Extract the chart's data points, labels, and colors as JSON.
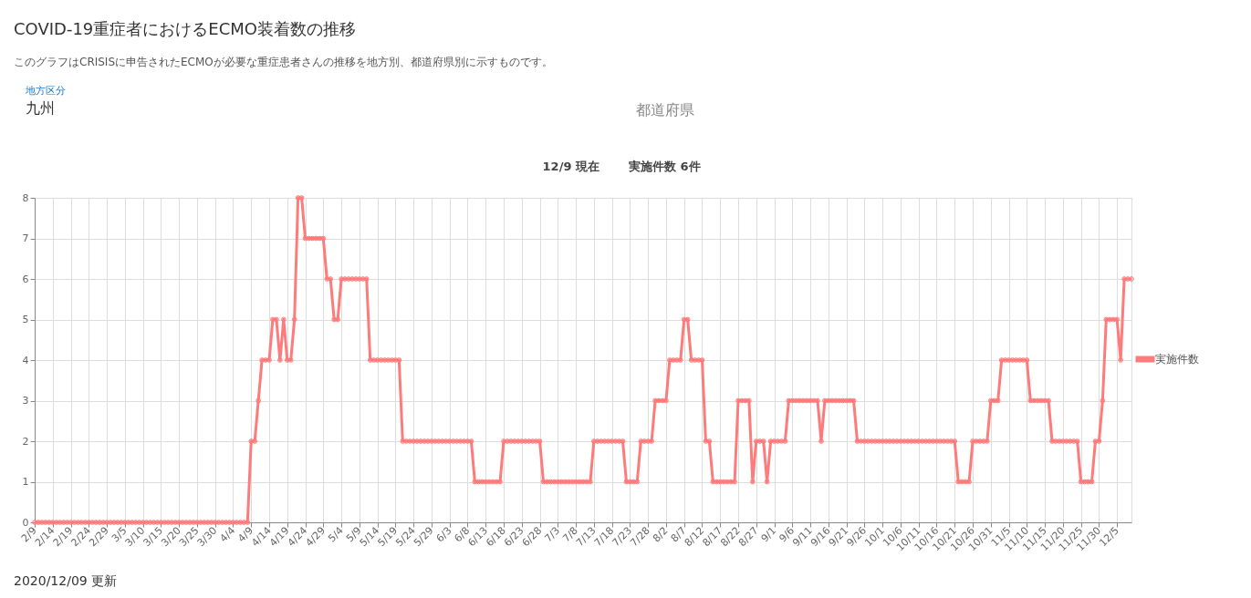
{
  "chart_data": {
    "type": "line",
    "title": "COVID-19重症者におけるECMO装着数の推移",
    "subtitle": "このグラフはCRISISに申告されたECMOが必要な重症患者さんの推移を地方別、都道府県別に示すものです。",
    "annotations": [
      "地方区分",
      "九州",
      "都道府県",
      "12/9 現在",
      "実施件数 6件",
      "2020/12/09 更新"
    ],
    "categories": [
      "2/9",
      null,
      null,
      null,
      null,
      "2/14",
      null,
      null,
      null,
      null,
      "2/19",
      null,
      null,
      null,
      null,
      "2/24",
      null,
      null,
      null,
      null,
      "2/29",
      null,
      null,
      null,
      null,
      "3/5",
      null,
      null,
      null,
      null,
      "3/10",
      null,
      null,
      null,
      null,
      "3/15",
      null,
      null,
      null,
      null,
      "3/20",
      null,
      null,
      null,
      null,
      "3/25",
      null,
      null,
      null,
      null,
      "3/30",
      null,
      null,
      null,
      null,
      "4/4",
      null,
      null,
      null,
      null,
      "4/9",
      null,
      null,
      null,
      null,
      "4/14",
      null,
      null,
      null,
      null,
      "4/19",
      null,
      null,
      null,
      null,
      "4/24",
      null,
      null,
      null,
      null,
      "4/29",
      null,
      null,
      null,
      null,
      "5/4",
      null,
      null,
      null,
      null,
      "5/9",
      null,
      null,
      null,
      null,
      "5/14",
      null,
      null,
      null,
      null,
      "5/19",
      null,
      null,
      null,
      null,
      "5/24",
      null,
      null,
      null,
      null,
      "5/29",
      null,
      null,
      null,
      null,
      "6/3",
      null,
      null,
      null,
      null,
      "6/8",
      null,
      null,
      null,
      null,
      "6/13",
      null,
      null,
      null,
      null,
      "6/18",
      null,
      null,
      null,
      null,
      "6/23",
      null,
      null,
      null,
      null,
      "6/28",
      null,
      null,
      null,
      null,
      "7/3",
      null,
      null,
      null,
      null,
      "7/8",
      null,
      null,
      null,
      null,
      "7/13",
      null,
      null,
      null,
      null,
      "7/18",
      null,
      null,
      null,
      null,
      "7/23",
      null,
      null,
      null,
      null,
      "7/28",
      null,
      null,
      null,
      null,
      "8/2",
      null,
      null,
      null,
      null,
      "8/7",
      null,
      null,
      null,
      null,
      "8/12",
      null,
      null,
      null,
      null,
      "8/17",
      null,
      null,
      null,
      null,
      "8/22",
      null,
      null,
      null,
      null,
      "8/27",
      null,
      null,
      null,
      null,
      "9/1",
      null,
      null,
      null,
      null,
      "9/6",
      null,
      null,
      null,
      null,
      "9/11",
      null,
      null,
      null,
      null,
      "9/16",
      null,
      null,
      null,
      null,
      "9/21",
      null,
      null,
      null,
      null,
      "9/26",
      null,
      null,
      null,
      null,
      "10/1",
      null,
      null,
      null,
      null,
      "10/6",
      null,
      null,
      null,
      null,
      "10/11",
      null,
      null,
      null,
      null,
      "10/16",
      null,
      null,
      null,
      null,
      "10/21",
      null,
      null,
      null,
      null,
      "10/26",
      null,
      null,
      null,
      null,
      "10/31",
      null,
      null,
      null,
      null,
      "11/5",
      null,
      null,
      null,
      null,
      "11/10",
      null,
      null,
      null,
      null,
      "11/15",
      null,
      null,
      null,
      null,
      "11/20",
      null,
      null,
      null,
      null,
      "11/25",
      null,
      null,
      null,
      null,
      "11/30",
      null,
      null,
      null,
      null,
      "12/5",
      null,
      null,
      null,
      null
    ],
    "series": [
      {
        "name": "実施件数",
        "color": "#ff7b7b",
        "values": [
          0,
          0,
          0,
          0,
          0,
          0,
          0,
          0,
          0,
          0,
          0,
          0,
          0,
          0,
          0,
          0,
          0,
          0,
          0,
          0,
          0,
          0,
          0,
          0,
          0,
          0,
          0,
          0,
          0,
          0,
          0,
          0,
          0,
          0,
          0,
          0,
          0,
          0,
          0,
          0,
          0,
          0,
          0,
          0,
          0,
          0,
          0,
          0,
          0,
          0,
          0,
          0,
          0,
          0,
          0,
          0,
          0,
          0,
          0,
          0,
          2,
          2,
          3,
          4,
          4,
          4,
          5,
          5,
          4,
          5,
          4,
          4,
          5,
          8,
          8,
          7,
          7,
          7,
          7,
          7,
          7,
          6,
          6,
          5,
          5,
          6,
          6,
          6,
          6,
          6,
          6,
          6,
          6,
          4,
          4,
          4,
          4,
          4,
          4,
          4,
          4,
          4,
          2,
          2,
          2,
          2,
          2,
          2,
          2,
          2,
          2,
          2,
          2,
          2,
          2,
          2,
          2,
          2,
          2,
          2,
          2,
          2,
          1,
          1,
          1,
          1,
          1,
          1,
          1,
          1,
          2,
          2,
          2,
          2,
          2,
          2,
          2,
          2,
          2,
          2,
          2,
          1,
          1,
          1,
          1,
          1,
          1,
          1,
          1,
          1,
          1,
          1,
          1,
          1,
          1,
          2,
          2,
          2,
          2,
          2,
          2,
          2,
          2,
          2,
          1,
          1,
          1,
          1,
          2,
          2,
          2,
          2,
          3,
          3,
          3,
          3,
          4,
          4,
          4,
          4,
          5,
          5,
          4,
          4,
          4,
          4,
          2,
          2,
          1,
          1,
          1,
          1,
          1,
          1,
          1,
          3,
          3,
          3,
          3,
          1,
          2,
          2,
          2,
          1,
          2,
          2,
          2,
          2,
          2,
          3,
          3,
          3,
          3,
          3,
          3,
          3,
          3,
          3,
          2,
          3,
          3,
          3,
          3,
          3,
          3,
          3,
          3,
          3,
          2,
          2,
          2,
          2,
          2,
          2,
          2,
          2,
          2,
          2,
          2,
          2,
          2,
          2,
          2,
          2,
          2,
          2,
          2,
          2,
          2,
          2,
          2,
          2,
          2,
          2,
          2,
          2,
          1,
          1,
          1,
          1,
          2,
          2,
          2,
          2,
          2,
          3,
          3,
          3,
          4,
          4,
          4,
          4,
          4,
          4,
          4,
          4,
          3,
          3,
          3,
          3,
          3,
          3,
          2,
          2,
          2,
          2,
          2,
          2,
          2,
          2,
          1,
          1,
          1,
          1,
          2,
          2,
          3,
          5,
          5,
          5,
          5,
          4,
          6,
          6,
          6
        ]
      }
    ],
    "ylim": [
      0,
      8
    ],
    "yticks": [
      0,
      1,
      2,
      3,
      4,
      5,
      6,
      7,
      8
    ],
    "grid": true,
    "legend": "right",
    "marker": "circle",
    "line_style": "solid"
  }
}
